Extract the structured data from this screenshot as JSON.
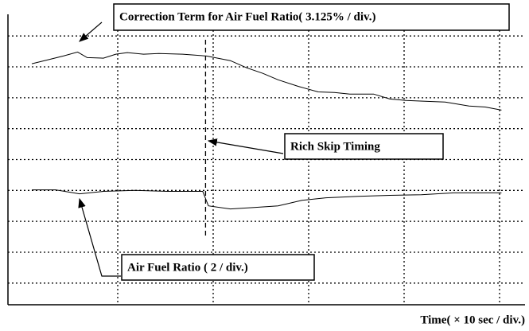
{
  "chart_data": {
    "type": "line",
    "x_label": "Time( × 10 sec / div.)",
    "xlim": [
      -0.15,
      5.25
    ],
    "xticks": [
      1,
      2,
      3,
      4,
      5
    ],
    "ylim": [
      -0.7,
      8.7
    ],
    "yticks": [
      0,
      1,
      2,
      3,
      4,
      5,
      6,
      7,
      8
    ],
    "grid": true,
    "series": [
      {
        "name": "Correction Term for Air Fuel Ratio( 3.125% / div.)",
        "color": "#000000",
        "x": [
          0.1,
          0.27,
          0.43,
          0.58,
          0.68,
          0.85,
          0.98,
          1.1,
          1.27,
          1.43,
          1.68,
          1.93,
          2.18,
          2.35,
          2.52,
          2.68,
          2.89,
          3.1,
          3.27,
          3.43,
          3.68,
          3.85,
          4.02,
          4.27,
          4.43,
          4.68,
          4.85,
          5.02
        ],
        "values": [
          7.1,
          7.23,
          7.35,
          7.48,
          7.3,
          7.28,
          7.41,
          7.46,
          7.41,
          7.43,
          7.41,
          7.35,
          7.2,
          6.97,
          6.79,
          6.58,
          6.37,
          6.19,
          6.17,
          6.12,
          6.12,
          5.96,
          5.91,
          5.88,
          5.86,
          5.73,
          5.7,
          5.6
        ]
      },
      {
        "name": "Air Fuel Ratio ( 2 / div.)",
        "color": "#000000",
        "x": [
          0.1,
          0.35,
          0.6,
          0.85,
          1.18,
          1.52,
          1.89,
          1.95,
          2.18,
          2.43,
          2.68,
          2.93,
          3.18,
          3.52,
          3.85,
          4.18,
          4.52,
          5.02
        ],
        "values": [
          3.02,
          3.02,
          2.89,
          2.97,
          3.0,
          2.97,
          2.97,
          2.5,
          2.4,
          2.45,
          2.5,
          2.68,
          2.76,
          2.81,
          2.84,
          2.86,
          2.92,
          2.92
        ]
      }
    ],
    "annotations": [
      {
        "text": "Rich Skip Timing",
        "x": 1.92
      }
    ]
  }
}
